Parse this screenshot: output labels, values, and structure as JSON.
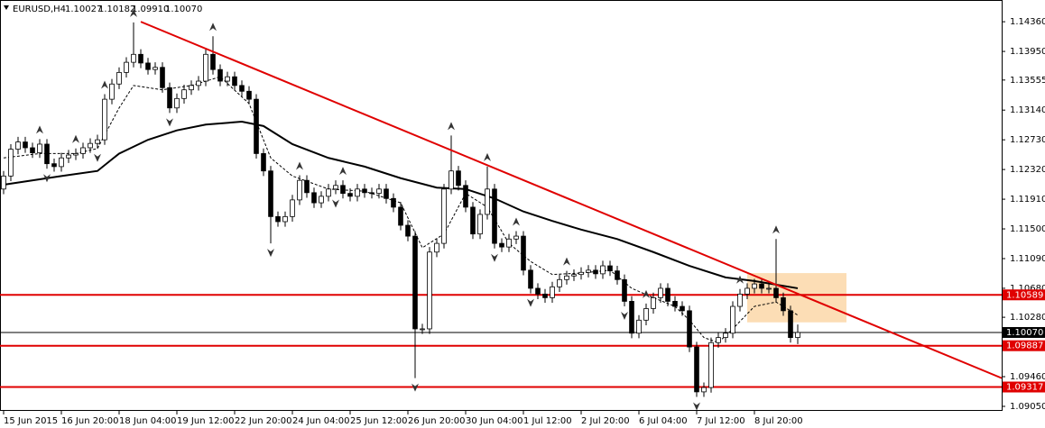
{
  "chart_data": {
    "type": "candlestick",
    "title": "EURUSD,H4",
    "last_bar": [
      1.10027,
      1.10182,
      {
        "value": 1.0991,
        "label": "1.09910"
      },
      {
        "value": 1.1007,
        "label": "1.10070"
      }
    ],
    "xlim": [
      -0.5,
      138.25
    ],
    "ylim": [
      1.09,
      1.1466
    ],
    "xticks": [
      {
        "value": 0,
        "label": "15 Jun 2015"
      },
      {
        "value": 8,
        "label": "16 Jun 20:00"
      },
      {
        "value": 16,
        "label": "18 Jun 04:00"
      },
      {
        "value": 24,
        "label": "19 Jun 12:00"
      },
      {
        "value": 32,
        "label": "22 Jun 20:00"
      },
      {
        "value": 40,
        "label": "24 Jun 04:00"
      },
      {
        "value": 48,
        "label": "25 Jun 12:00"
      },
      {
        "value": 56,
        "label": "26 Jun 20:00"
      },
      {
        "value": 64,
        "label": "30 Jun 04:00"
      },
      {
        "value": 72,
        "label": "1 Jul 12:00"
      },
      {
        "value": 80,
        "label": "2 Jul 20:00"
      },
      {
        "value": 88,
        "label": "6 Jul 04:00"
      },
      {
        "value": 96,
        "label": "7 Jul 12:00"
      },
      {
        "value": 104,
        "label": "8 Jul 20:00"
      }
    ],
    "yticks": [
      {
        "value": 1.1436,
        "label": "1.14360"
      },
      {
        "value": 1.1395,
        "label": "1.13950"
      },
      1.13555,
      {
        "value": 1.1314,
        "label": "1.13140"
      },
      {
        "value": 1.1273,
        "label": "1.12730"
      },
      {
        "value": 1.1232,
        "label": "1.12320"
      },
      {
        "value": 1.1191,
        "label": "1.11910"
      },
      {
        "value": 1.115,
        "label": "1.11500"
      },
      {
        "value": 1.1109,
        "label": "1.11090"
      },
      {
        "value": 1.1068,
        "label": "1.10680"
      },
      {
        "value": 1.1028,
        "label": "1.10280"
      },
      {
        "value": 1.0946,
        "label": "1.09460"
      },
      {
        "value": 1.0905,
        "label": "1.09050"
      }
    ],
    "open": [
      1.1205,
      1.1223,
      1.126,
      1.127,
      1.1262,
      1.1255,
      1.1267,
      1.124,
      1.1236,
      1.1248,
      1.1252,
      1.1254,
      1.1262,
      1.1268,
      1.1273,
      1.1329,
      1.135,
      1.1366,
      1.138,
      1.1391,
      1.1379,
      1.137,
      1.1373,
      1.1345,
      1.1317,
      1.133,
      1.1342,
      1.1348,
      1.1354,
      1.1391,
      1.137,
      1.1354,
      1.136,
      1.1348,
      1.134,
      1.1329,
      1.1254,
      1.123,
      1.1167,
      1.116,
      1.1167,
      1.119,
      1.1217,
      1.12,
      1.1186,
      1.1195,
      1.1205,
      1.121,
      1.1199,
      1.1195,
      1.1205,
      1.12,
      1.1199,
      1.1205,
      1.1192,
      1.118,
      1.1155,
      1.114,
      1.1012,
      1.1012,
      1.1118,
      1.113,
      1.1205,
      1.123,
      1.121,
      1.118,
      1.1143,
      1.117,
      1.1205,
      1.113,
      1.1125,
      1.1136,
      1.114,
      1.1093,
      1.1068,
      1.106,
      1.1055,
      1.107,
      1.108,
      1.1085,
      1.1087,
      1.109,
      1.1093,
      1.1088,
      1.1099,
      1.1092,
      1.108,
      1.105,
      1.1006,
      1.1024,
      1.104,
      1.1055,
      1.1068,
      1.105,
      1.1043,
      1.1037,
      1.0987,
      1.0925,
      1.0931,
      1.0993,
      1.1,
      1.1006,
      1.1043,
      1.106,
      1.1068,
      1.1074,
      1.1068,
      1.1068,
      1.1055,
      1.1037,
      1.1
    ],
    "high": [
      1.123,
      1.1267,
      1.1277,
      1.1277,
      1.1269,
      1.1274,
      1.1274,
      1.1247,
      1.1255,
      1.1259,
      1.1261,
      1.1269,
      1.1275,
      1.128,
      1.1336,
      1.1357,
      1.1373,
      1.1387,
      1.1435,
      1.1398,
      1.1386,
      1.138,
      1.138,
      1.1352,
      1.1337,
      1.1349,
      1.1355,
      1.1361,
      1.1398,
      1.1416,
      1.1377,
      1.1367,
      1.1367,
      1.1355,
      1.1347,
      1.1336,
      1.1261,
      1.1237,
      1.1174,
      1.1174,
      1.1197,
      1.1224,
      1.1224,
      1.1207,
      1.1202,
      1.1212,
      1.1217,
      1.1217,
      1.1206,
      1.1212,
      1.1212,
      1.1207,
      1.1212,
      1.1212,
      1.1199,
      1.1187,
      1.1162,
      1.1147,
      1.1019,
      1.1125,
      1.1137,
      1.1212,
      1.1279,
      1.1237,
      1.1217,
      1.1187,
      1.1177,
      1.1236,
      1.1212,
      1.1137,
      1.1143,
      1.1147,
      1.1147,
      1.11,
      1.1075,
      1.1067,
      1.1077,
      1.1087,
      1.1092,
      1.1094,
      1.1097,
      1.11,
      1.11,
      1.1106,
      1.1106,
      1.1099,
      1.1087,
      1.1057,
      1.1031,
      1.1047,
      1.1062,
      1.1075,
      1.1075,
      1.1057,
      1.105,
      1.1044,
      1.0994,
      1.0938,
      1.1,
      1.1007,
      1.1013,
      1.105,
      1.1067,
      1.1075,
      1.1081,
      1.1081,
      1.1075,
      1.1136,
      1.1062,
      1.1044,
      1.1018
    ],
    "low": [
      1.1198,
      1.1216,
      1.1253,
      1.1255,
      1.1248,
      1.1248,
      1.1233,
      1.1229,
      1.1229,
      1.1241,
      1.1245,
      1.1247,
      1.1255,
      1.1261,
      1.1266,
      1.1322,
      1.1343,
      1.1359,
      1.1373,
      1.1372,
      1.1363,
      1.1363,
      1.1338,
      1.131,
      1.131,
      1.1323,
      1.1335,
      1.1341,
      1.1347,
      1.1363,
      1.1347,
      1.1347,
      1.1341,
      1.1333,
      1.1322,
      1.1247,
      1.1223,
      1.113,
      1.1153,
      1.1153,
      1.116,
      1.1183,
      1.1193,
      1.1179,
      1.1179,
      1.1188,
      1.1198,
      1.1192,
      1.1188,
      1.1188,
      1.1193,
      1.1192,
      1.1192,
      1.1185,
      1.1173,
      1.1148,
      1.1133,
      1.0944,
      1.1005,
      1.1005,
      1.1111,
      1.1123,
      1.1198,
      1.1203,
      1.1173,
      1.1136,
      1.1136,
      1.1163,
      1.1123,
      1.1118,
      1.1118,
      1.1129,
      1.1086,
      1.1061,
      1.1053,
      1.1048,
      1.1048,
      1.1063,
      1.1073,
      1.1078,
      1.108,
      1.1083,
      1.1081,
      1.1081,
      1.1085,
      1.1073,
      1.1043,
      1.0999,
      1.0999,
      1.1017,
      1.1033,
      1.1048,
      1.1043,
      1.1036,
      1.103,
      1.098,
      1.0918,
      1.0918,
      1.0924,
      1.0986,
      1.0993,
      1.0999,
      1.1036,
      1.1053,
      1.1061,
      1.1061,
      1.1061,
      1.1048,
      1.103,
      1.0993,
      1.0991
    ],
    "close": [
      1.1223,
      1.126,
      1.127,
      1.1262,
      1.1255,
      1.1267,
      1.124,
      1.1236,
      1.1248,
      1.1252,
      1.1254,
      1.1262,
      1.1268,
      1.1273,
      1.1329,
      1.135,
      1.1366,
      1.138,
      1.1391,
      1.1379,
      1.137,
      1.1373,
      1.1345,
      1.1317,
      1.133,
      1.1342,
      1.1348,
      1.1354,
      1.1391,
      1.137,
      1.1354,
      1.136,
      1.1348,
      1.134,
      1.1329,
      1.1254,
      1.123,
      1.1167,
      1.116,
      1.1167,
      1.119,
      1.1217,
      1.12,
      1.1186,
      1.1195,
      1.1205,
      1.121,
      1.1199,
      1.1195,
      1.1205,
      1.12,
      1.1199,
      1.1205,
      1.1192,
      1.118,
      1.1155,
      1.114,
      1.1012,
      1.1012,
      1.1118,
      1.113,
      1.1205,
      1.123,
      1.121,
      1.118,
      1.1143,
      1.117,
      1.1205,
      1.113,
      1.1125,
      1.1136,
      1.114,
      1.1093,
      1.1068,
      1.106,
      1.1055,
      1.107,
      1.108,
      1.1085,
      1.1087,
      1.109,
      1.1093,
      1.1088,
      1.1099,
      1.1092,
      1.108,
      1.105,
      1.1006,
      1.1024,
      1.104,
      1.1055,
      1.1068,
      1.105,
      1.1043,
      1.1037,
      1.0987,
      1.0925,
      1.0931,
      1.0993,
      1.1,
      1.1006,
      1.1043,
      1.106,
      1.1068,
      1.1074,
      1.1068,
      1.1068,
      1.1055,
      1.1037,
      1.1,
      1.1007
    ],
    "moving_averages": [
      {
        "color": "#000000",
        "dashed": false,
        "x": [
          0,
          8,
          13,
          16,
          20,
          24,
          28,
          33,
          36,
          40,
          45,
          50,
          55,
          60,
          64,
          68,
          72,
          76,
          80,
          85,
          90,
          95,
          100,
          104,
          110
        ],
        "values": [
          1.1211,
          1.1223,
          1.123,
          1.1254,
          1.1273,
          1.1286,
          1.1294,
          1.1298,
          1.1292,
          1.1267,
          1.1248,
          1.1236,
          1.122,
          1.1207,
          1.1205,
          1.1192,
          1.1174,
          1.1161,
          1.1149,
          1.1136,
          1.1118,
          1.1099,
          1.1083,
          1.1078,
          1.1068
        ]
      },
      {
        "color": "#000000",
        "dashed": true,
        "x": [
          0,
          5,
          10,
          13,
          16,
          18,
          22,
          26,
          30,
          34,
          37,
          40,
          45,
          50,
          55,
          58,
          61,
          64,
          67,
          70,
          73,
          76,
          80,
          84,
          87,
          90,
          93,
          95,
          97,
          99,
          101,
          104,
          107,
          110
        ],
        "values": [
          1.1248,
          1.1254,
          1.1254,
          1.1261,
          1.1317,
          1.1348,
          1.1342,
          1.1348,
          1.136,
          1.1323,
          1.1248,
          1.1223,
          1.1205,
          1.1202,
          1.1186,
          1.1124,
          1.1143,
          1.1199,
          1.118,
          1.113,
          1.1105,
          1.1087,
          1.1089,
          1.1093,
          1.1068,
          1.1055,
          1.1043,
          1.1024,
          1.1,
          1.0993,
          1.1012,
          1.1043,
          1.1049,
          1.1031
        ]
      }
    ],
    "fractals_up": [
      5,
      10,
      14,
      18,
      29,
      41,
      47,
      62,
      67,
      71,
      78,
      89,
      102,
      107
    ],
    "fractals_down": [
      6,
      13,
      23,
      37,
      46,
      57,
      68,
      73,
      86,
      96
    ],
    "trendline": {
      "color": "#e00000",
      "x": [
        19,
        138.25
      ],
      "values": [
        1.1436,
        1.0944
      ]
    },
    "zone": {
      "color": "#fbd7a8",
      "x": [
        103,
        116.75
      ],
      "values": [
        1.1089,
        1.1021
      ]
    },
    "levels": [
      {
        "value": 1.10589,
        "color": "#e00000"
      },
      {
        "value": {
          "value": 1.1007,
          "label": "1.10070"
        },
        "color": "#000000"
      },
      {
        "value": 1.09887,
        "color": "#e00000"
      },
      {
        "value": 1.09317,
        "color": "#e00000"
      }
    ],
    "bull_color": "#ffffff",
    "bear_color": "#000000"
  }
}
